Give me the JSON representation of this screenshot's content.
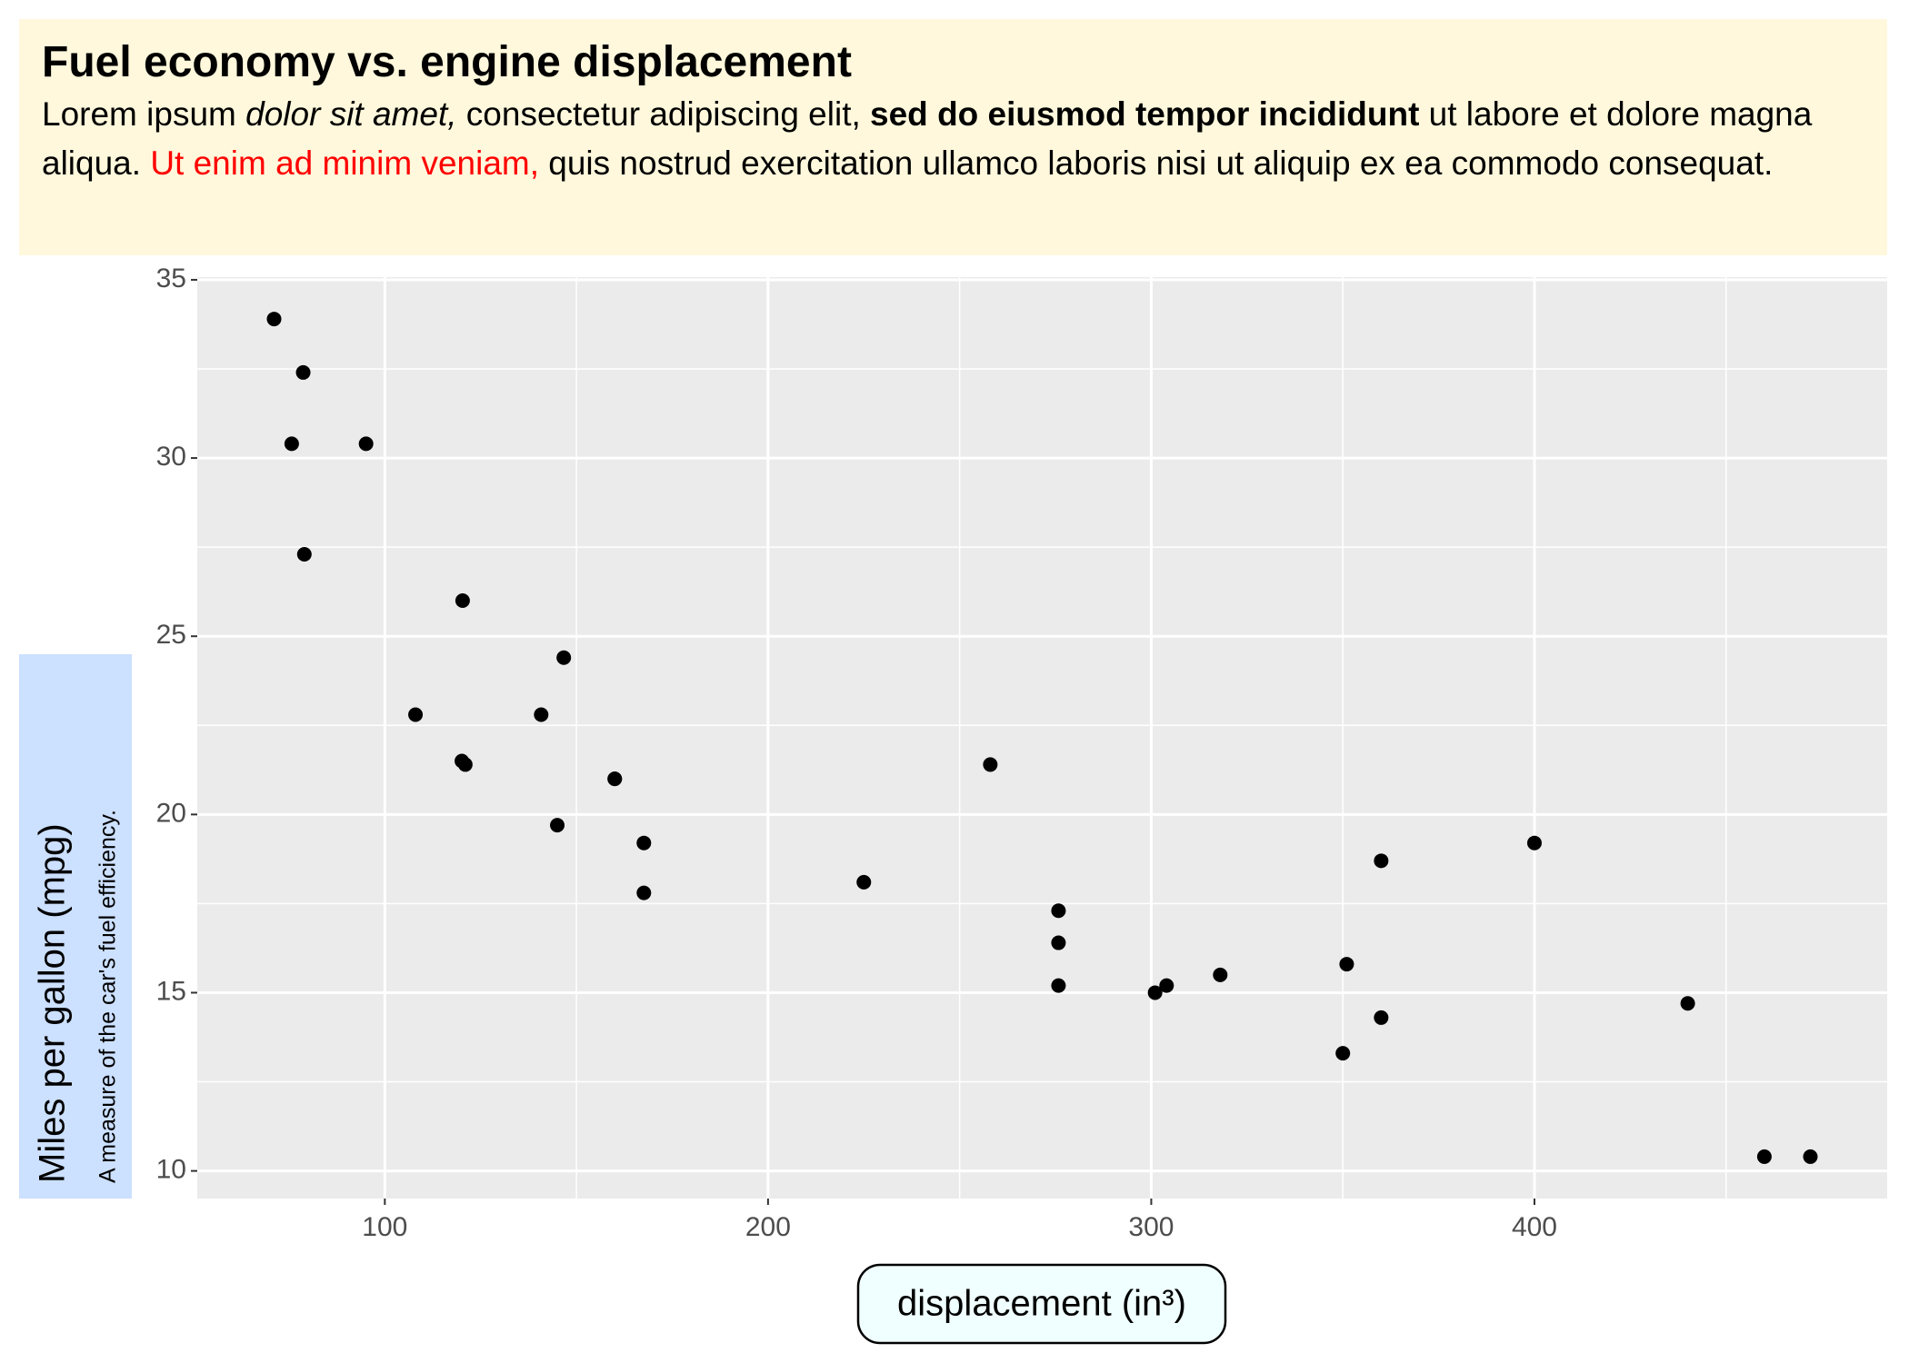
{
  "chart_data": {
    "type": "scatter",
    "title": "Fuel economy vs. engine displacement",
    "subtitle": [
      {
        "text": "Lorem ipsum "
      },
      {
        "text": "dolor sit amet,",
        "style": "italic"
      },
      {
        "text": " consectetur adipiscing elit, "
      },
      {
        "text": "sed do eiusmod tempor incididunt",
        "style": "bold"
      },
      {
        "text": " ut labore et dolore magna aliqua. "
      },
      {
        "text": "Ut enim ad minim veniam,",
        "color": "#ff0000"
      },
      {
        "text": " quis nostrud exercitation ullamco laboris nisi ut aliquip ex ea commodo consequat."
      }
    ],
    "ylabel": "Miles per gallon (mpg)",
    "ylabel_note": "A measure of the car's fuel efficiency.",
    "xlabel": "displacement (in³)",
    "x": [
      160,
      160,
      108,
      258,
      360,
      225,
      360,
      146.7,
      140.8,
      167.6,
      167.6,
      275.8,
      275.8,
      275.8,
      472,
      460,
      440,
      78.7,
      75.7,
      71.1,
      120.1,
      318,
      304,
      350,
      400,
      79,
      120.3,
      95.1,
      351,
      145,
      301,
      121
    ],
    "values": [
      21.0,
      21.0,
      22.8,
      21.4,
      18.7,
      18.1,
      14.3,
      24.4,
      22.8,
      19.2,
      17.8,
      16.4,
      17.3,
      15.2,
      10.4,
      10.4,
      14.7,
      32.4,
      30.4,
      33.9,
      21.5,
      15.5,
      15.2,
      13.3,
      19.2,
      27.3,
      26.0,
      30.4,
      15.8,
      19.7,
      15.0,
      21.4
    ],
    "color": "#000000",
    "xlim": [
      51.055,
      492.045
    ],
    "ylim": [
      9.225,
      35.075
    ],
    "xticks": [
      100,
      200,
      300,
      400
    ],
    "yticks": [
      10,
      15,
      20,
      25,
      30,
      35
    ],
    "xminor": [
      150,
      250,
      350,
      450
    ],
    "yminor": [
      12.5,
      17.5,
      22.5,
      27.5,
      32.5
    ],
    "grid": true
  }
}
